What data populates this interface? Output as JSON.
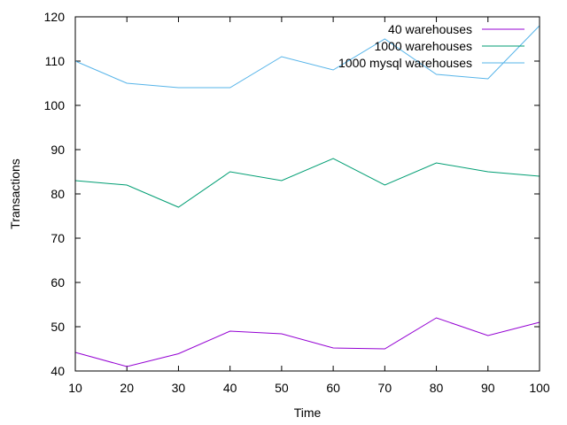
{
  "chart_data": {
    "type": "line",
    "title": "",
    "xlabel": "Time",
    "ylabel": "Transactions",
    "xlim": [
      10,
      100
    ],
    "ylim": [
      40,
      120
    ],
    "x_ticks": [
      10,
      20,
      30,
      40,
      50,
      60,
      70,
      80,
      90,
      100
    ],
    "y_ticks": [
      40,
      50,
      60,
      70,
      80,
      90,
      100,
      110,
      120
    ],
    "grid": false,
    "legend_position": "top-right",
    "x": [
      10,
      20,
      30,
      40,
      50,
      60,
      70,
      80,
      90,
      100
    ],
    "series": [
      {
        "name": "40 warehouses",
        "color": "#9400d3",
        "values": [
          44.2,
          41,
          43.9,
          49,
          48.4,
          45.2,
          45,
          52,
          48,
          51
        ]
      },
      {
        "name": "1000 warehouses",
        "color": "#009e73",
        "values": [
          83,
          82,
          77,
          85,
          83,
          88,
          82,
          87,
          85,
          84
        ]
      },
      {
        "name": "1000 mysql warehouses",
        "color": "#56b4e9",
        "values": [
          110,
          105,
          104,
          104,
          111,
          108,
          115,
          107,
          106,
          118
        ]
      }
    ]
  }
}
